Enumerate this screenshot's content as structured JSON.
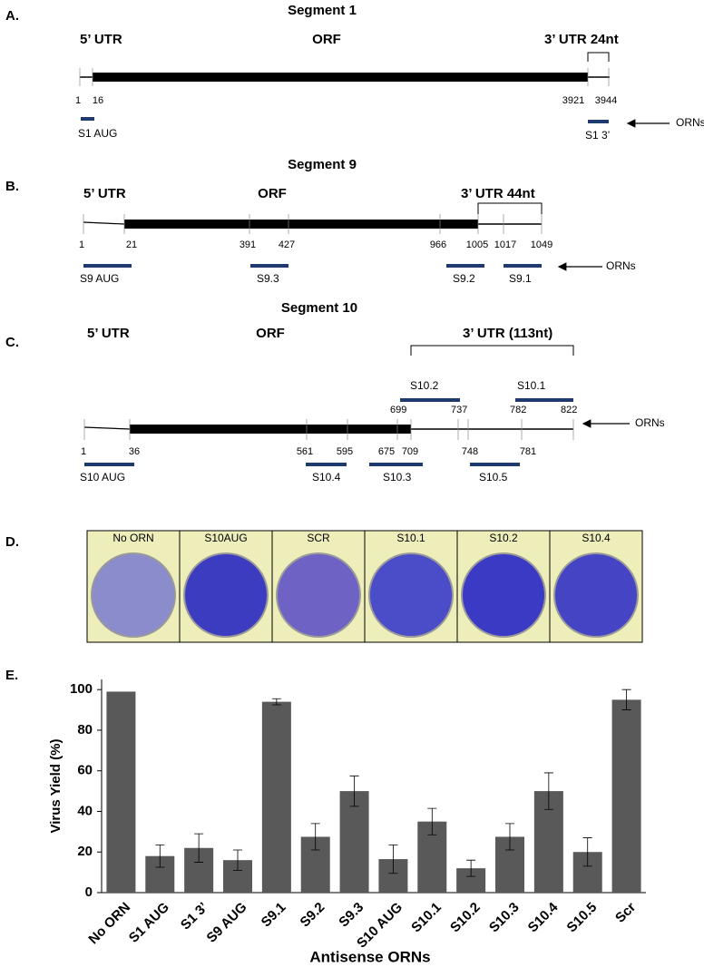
{
  "panel_a": {
    "label": "A.",
    "title": "Segment 1",
    "utr5": "5’ UTR",
    "orf": "ORF",
    "utr3": "3’ UTR 24nt",
    "positions": [
      1,
      16,
      3921,
      3944
    ],
    "orns": [
      "S1 AUG",
      "S1 3’"
    ],
    "orns_label": "ORNs"
  },
  "panel_b": {
    "label": "B.",
    "title": "Segment 9",
    "utr5": "5’ UTR",
    "orf": "ORF",
    "utr3": "3’ UTR 44nt",
    "positions": [
      1,
      21,
      391,
      427,
      966,
      1005,
      1017,
      1049
    ],
    "orns": [
      "S9 AUG",
      "S9.3",
      "S9.2",
      "S9.1"
    ],
    "orns_label": "ORNs"
  },
  "panel_c": {
    "label": "C.",
    "title": "Segment 10",
    "utr5": "5’ UTR",
    "orf": "ORF",
    "utr3": "3’ UTR (113nt)",
    "positions_top": [
      699,
      737,
      782,
      822
    ],
    "positions": [
      1,
      36,
      561,
      595,
      675,
      709,
      748,
      781
    ],
    "orns": [
      "S10.2",
      "S10.1",
      "S10 AUG",
      "S10.4",
      "S10.3",
      "S10.5"
    ],
    "orns_label": "ORNs"
  },
  "panel_d": {
    "label": "D.",
    "plates": [
      "No ORN",
      "S10AUG",
      "SCR",
      "S10.1",
      "S10.2",
      "S10.4"
    ]
  },
  "panel_e_label": "E.",
  "chart_data": {
    "type": "bar",
    "x_label": "Antisense ORNs",
    "y_label": "Virus Yield (%)",
    "categories": [
      "No ORN",
      "S1 AUG",
      "S1 3’",
      "S9 AUG",
      "S9.1",
      "S9.2",
      "S9.3",
      "S10 AUG",
      "S10.1",
      "S10.2",
      "S10.3",
      "S10.4",
      "S10.5",
      "Scr"
    ],
    "values": [
      99,
      18,
      22,
      16,
      94,
      27.5,
      50,
      16.5,
      35,
      12,
      27.5,
      50,
      20,
      95
    ],
    "errors": [
      null,
      5.5,
      7,
      5,
      1.5,
      6.5,
      7.5,
      7,
      6.5,
      4,
      6.5,
      9,
      7,
      5
    ],
    "color": "#595959",
    "ylim": [
      0,
      105
    ],
    "yticks": [
      0,
      20,
      40,
      60,
      80,
      100
    ]
  }
}
